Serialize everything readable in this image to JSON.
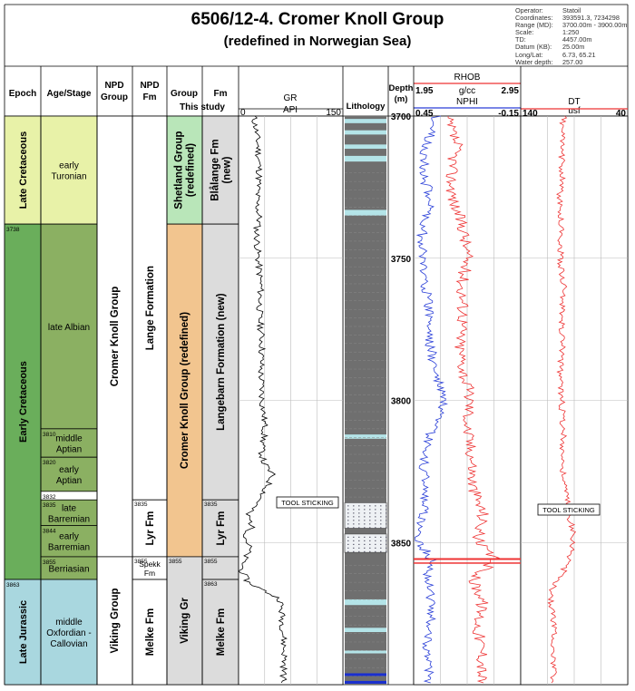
{
  "header": {
    "title": "6506/12-4.  Cromer Knoll Group",
    "subtitle": "(redefined in Norwegian Sea)",
    "info_labels": [
      "Operator:",
      "Coordinates:",
      "Range (MD):",
      "Scale:",
      "TD:",
      "Datum (KB):",
      "Long/Lat:",
      "Water depth:"
    ],
    "info_values": [
      "Statoil",
      "393591.3, 7234298",
      "3700.00m - 3900.00m",
      "1:250",
      "4457.00m",
      "25.00m",
      "6.73, 65.21",
      "257.00"
    ]
  },
  "columns": {
    "epoch": "Epoch",
    "age": "Age/Stage",
    "npd_group": [
      "NPD",
      "Group"
    ],
    "npd_fm": [
      "NPD",
      "Fm"
    ],
    "group_this": [
      "Group",
      "This study"
    ],
    "fm_this": "Fm",
    "gr": "GR",
    "lithology": "Lithology",
    "depth": [
      "Depth",
      "(m)"
    ],
    "rhob": "RHOB",
    "nphi": "NPHI",
    "dt": "DT"
  },
  "scales": {
    "gr_unit": "API",
    "gr_min": "0",
    "gr_max": "150",
    "rhob_unit": "g/cc",
    "rhob_min": "1.95",
    "rhob_max": "2.95",
    "nphi_min": "0.45",
    "nphi_max": "-0.15",
    "dt_unit": "usf",
    "dt_min": "140",
    "dt_max": "40"
  },
  "epochs": [
    {
      "name": "Late Cretaceous",
      "top": 3700,
      "base": 3738,
      "color": "#e8f2a8"
    },
    {
      "name": "Early Cretaceous",
      "top": 3738,
      "base": 3863,
      "color": "#6aae5b"
    },
    {
      "name": "Late Jurassic",
      "top": 3863,
      "base": 3900,
      "color": "#a9d7df"
    }
  ],
  "stages": [
    {
      "name": "early Turonian",
      "lines": [
        "early",
        "Turonian"
      ],
      "top": 3700,
      "base": 3738,
      "color": "#e8f2a8"
    },
    {
      "name": "late Albian",
      "lines": [
        "late Albian"
      ],
      "top": 3738,
      "base": 3810,
      "color": "#8bb062"
    },
    {
      "name": "middle Aptian",
      "lines": [
        "middle",
        "Aptian"
      ],
      "top": 3810,
      "base": 3820,
      "color": "#8bb062"
    },
    {
      "name": "early Aptian",
      "lines": [
        "early",
        "Aptian"
      ],
      "top": 3820,
      "base": 3832,
      "color": "#8bb062"
    },
    {
      "name": "late Barremian",
      "lines": [
        "late",
        "Barremian"
      ],
      "top": 3835,
      "base": 3844,
      "color": "#8bb062"
    },
    {
      "name": "early Barremian",
      "lines": [
        "early",
        "Barremian"
      ],
      "top": 3844,
      "base": 3855,
      "color": "#8bb062"
    },
    {
      "name": "Berriasian",
      "lines": [
        "Berriasian"
      ],
      "top": 3855,
      "base": 3863,
      "color": "#8bb062"
    },
    {
      "name": "middle Oxfordian - Callovian",
      "lines": [
        "middle",
        "Oxfordian -",
        "Callovian"
      ],
      "top": 3863,
      "base": 3900,
      "color": "#a9d7df"
    }
  ],
  "depth_marks": [
    {
      "label": "3738",
      "depth": 3738
    },
    {
      "label": "3810",
      "depth": 3810
    },
    {
      "label": "3820",
      "depth": 3820
    },
    {
      "label": "3832",
      "depth": 3832
    },
    {
      "label": "3835",
      "depth": 3835
    },
    {
      "label": "3844",
      "depth": 3844
    },
    {
      "label": "3855",
      "depth": 3855
    },
    {
      "label": "3863",
      "depth": 3863
    }
  ],
  "npd_groups": [
    {
      "name": "Cromer Knoll Group",
      "top": 3700,
      "base": 3855
    },
    {
      "name": "Viking Group",
      "top": 3855,
      "base": 3900
    }
  ],
  "npd_fms": [
    {
      "name": "Lange Formation",
      "top": 3700,
      "base": 3835
    },
    {
      "name": "Lyr Fm",
      "top": 3835,
      "base": 3855,
      "mark": "3835"
    },
    {
      "name": "Spekk Fm",
      "top": 3855,
      "base": 3863,
      "mark": "3855"
    },
    {
      "name": "Melke Fm",
      "top": 3863,
      "base": 3900
    }
  ],
  "this_groups": [
    {
      "name": "Shetland Group (redefined)",
      "lines": [
        "Shetland Group",
        "(redefined)"
      ],
      "top": 3700,
      "base": 3738,
      "color": "#b9e6b9"
    },
    {
      "name": "Cromer Knoll Group (redefined)",
      "lines": [
        "Cromer Knoll Group (redefined)"
      ],
      "top": 3738,
      "base": 3855,
      "color": "#f2c58f"
    },
    {
      "name": "Viking Gr",
      "lines": [
        "Viking Gr"
      ],
      "top": 3855,
      "base": 3900,
      "color": "#dcdcdc",
      "mark": "3855"
    }
  ],
  "this_fms": [
    {
      "name": "Blålange Fm (new)",
      "lines": [
        "Blålange Fm",
        "(new)"
      ],
      "top": 3700,
      "base": 3738
    },
    {
      "name": "Langebarn Formation (new)",
      "lines": [
        "Langebarn Formation (new)"
      ],
      "top": 3738,
      "base": 3835
    },
    {
      "name": "Lyr Fm",
      "lines": [
        "Lyr Fm"
      ],
      "top": 3835,
      "base": 3855,
      "mark": "3835"
    },
    {
      "name": "",
      "lines": [],
      "top": 3855,
      "base": 3863,
      "mark": "3855"
    },
    {
      "name": "Melke Fm",
      "lines": [
        "Melke Fm"
      ],
      "top": 3863,
      "base": 3900,
      "mark": "3863"
    }
  ],
  "annotations": {
    "gr_note": "TOOL STICKING",
    "dt_note": "TOOL STICKING"
  },
  "colors": {
    "gr": "#000000",
    "rhob": "#e33",
    "nphi": "#2a3fd8",
    "dt": "#e33",
    "shale": "#6f6f6f",
    "sand": "#b4e4e8"
  },
  "chart_data": {
    "type": "line",
    "depth_range": [
      3700,
      3900
    ],
    "depth_ticks": [
      3700,
      3750,
      3800,
      3850
    ],
    "tracks": [
      {
        "name": "GR",
        "unit": "API",
        "range": [
          0,
          150
        ],
        "depth": [
          3700,
          3710,
          3720,
          3730,
          3736,
          3740,
          3750,
          3760,
          3770,
          3780,
          3790,
          3800,
          3810,
          3818,
          3822,
          3826,
          3830,
          3836,
          3840,
          3844,
          3848,
          3852,
          3856,
          3860,
          3864,
          3870,
          3880,
          3890,
          3900
        ],
        "values": [
          22,
          28,
          30,
          26,
          30,
          26,
          28,
          32,
          30,
          34,
          32,
          34,
          38,
          33,
          36,
          48,
          42,
          28,
          12,
          20,
          10,
          16,
          8,
          4,
          14,
          60,
          64,
          66,
          64
        ]
      },
      {
        "name": "RHOB",
        "unit": "g/cc",
        "range": [
          1.95,
          2.95
        ],
        "depth": [
          3700,
          3710,
          3720,
          3730,
          3740,
          3750,
          3760,
          3770,
          3780,
          3790,
          3800,
          3810,
          3820,
          3830,
          3840,
          3850,
          3856,
          3860,
          3863,
          3870,
          3880,
          3890,
          3900
        ],
        "values": [
          2.25,
          2.35,
          2.3,
          2.32,
          2.42,
          2.45,
          2.4,
          2.42,
          2.38,
          2.42,
          2.48,
          2.45,
          2.5,
          2.5,
          2.6,
          2.55,
          2.7,
          2.6,
          2.5,
          2.6,
          2.55,
          2.6,
          2.58
        ]
      },
      {
        "name": "NPHI",
        "range": [
          0.45,
          -0.15
        ],
        "depth": [
          3700,
          3710,
          3720,
          3730,
          3740,
          3750,
          3760,
          3770,
          3780,
          3790,
          3800,
          3810,
          3820,
          3830,
          3840,
          3850,
          3856,
          3860,
          3870,
          3880,
          3890,
          3900
        ],
        "values": [
          0.32,
          0.38,
          0.4,
          0.35,
          0.4,
          0.4,
          0.38,
          0.36,
          0.36,
          0.33,
          0.28,
          0.35,
          0.4,
          0.38,
          0.4,
          0.42,
          0.35,
          0.37,
          0.35,
          0.36,
          0.38,
          0.36
        ]
      },
      {
        "name": "DT",
        "unit": "usf",
        "range": [
          140,
          40
        ],
        "depth": [
          3700,
          3710,
          3720,
          3730,
          3740,
          3750,
          3760,
          3770,
          3780,
          3790,
          3800,
          3810,
          3825,
          3850,
          3855,
          3860,
          3866,
          3870,
          3880,
          3890,
          3900
        ],
        "values": [
          100,
          102,
          101,
          104,
          102,
          103,
          100,
          102,
          101,
          103,
          102,
          100,
          101,
          90,
          95,
          100,
          110,
          112,
          108,
          110,
          109
        ]
      }
    ]
  }
}
